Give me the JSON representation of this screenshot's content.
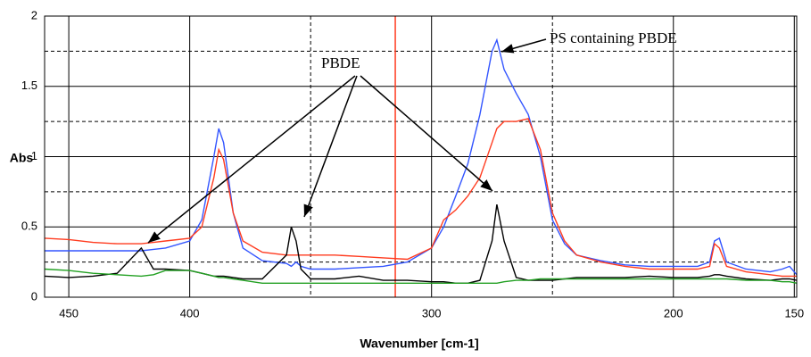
{
  "chart_data": {
    "type": "line",
    "y_label": "Abs",
    "x_label": "Wavenumber [cm-1]",
    "xlim": [
      460,
      149
    ],
    "xticks": [
      450,
      400,
      300,
      200,
      150
    ],
    "x_minor_grid": [
      350,
      250
    ],
    "ylim": [
      0,
      2
    ],
    "yticks": [
      0,
      0.5,
      1,
      1.5,
      2
    ],
    "y_minor_grid": [
      0.25,
      0.75,
      1.25,
      1.75
    ],
    "grid": true,
    "marker_line": 315,
    "marker_color": "#ff3b1f",
    "annotations": [
      "PS containing PBDE",
      "PBDE"
    ],
    "x": [
      460,
      450,
      440,
      430,
      420,
      415,
      410,
      400,
      395,
      390,
      388,
      386,
      382,
      378,
      370,
      360,
      358,
      356,
      354,
      350,
      340,
      330,
      320,
      310,
      300,
      295,
      290,
      285,
      280,
      275,
      273,
      270,
      265,
      260,
      255,
      250,
      245,
      240,
      230,
      220,
      210,
      200,
      190,
      185,
      183,
      181,
      178,
      170,
      160,
      155,
      152,
      149
    ],
    "series": [
      {
        "color": "#3355ff",
        "values": [
          0.33,
          0.33,
          0.33,
          0.33,
          0.33,
          0.34,
          0.35,
          0.4,
          0.55,
          1.0,
          1.2,
          1.1,
          0.6,
          0.35,
          0.26,
          0.24,
          0.22,
          0.25,
          0.22,
          0.2,
          0.2,
          0.21,
          0.22,
          0.25,
          0.35,
          0.5,
          0.72,
          0.95,
          1.3,
          1.75,
          1.83,
          1.62,
          1.45,
          1.3,
          1.0,
          0.55,
          0.38,
          0.3,
          0.26,
          0.23,
          0.22,
          0.22,
          0.22,
          0.25,
          0.4,
          0.42,
          0.25,
          0.2,
          0.18,
          0.2,
          0.22,
          0.16
        ]
      },
      {
        "color": "#ff3b1f",
        "values": [
          0.42,
          0.41,
          0.39,
          0.38,
          0.38,
          0.39,
          0.4,
          0.42,
          0.5,
          0.85,
          1.05,
          0.98,
          0.6,
          0.4,
          0.32,
          0.3,
          0.3,
          0.3,
          0.3,
          0.3,
          0.3,
          0.29,
          0.28,
          0.27,
          0.35,
          0.55,
          0.62,
          0.72,
          0.85,
          1.1,
          1.2,
          1.25,
          1.25,
          1.27,
          1.05,
          0.6,
          0.4,
          0.3,
          0.25,
          0.22,
          0.2,
          0.2,
          0.2,
          0.22,
          0.38,
          0.35,
          0.22,
          0.18,
          0.16,
          0.15,
          0.15,
          0.15
        ]
      },
      {
        "color": "#000000",
        "values": [
          0.15,
          0.14,
          0.15,
          0.17,
          0.35,
          0.2,
          0.2,
          0.19,
          0.17,
          0.15,
          0.15,
          0.15,
          0.14,
          0.13,
          0.13,
          0.3,
          0.5,
          0.4,
          0.2,
          0.13,
          0.13,
          0.15,
          0.12,
          0.12,
          0.11,
          0.11,
          0.1,
          0.1,
          0.12,
          0.4,
          0.66,
          0.4,
          0.14,
          0.12,
          0.12,
          0.12,
          0.13,
          0.14,
          0.14,
          0.14,
          0.15,
          0.14,
          0.14,
          0.15,
          0.16,
          0.16,
          0.15,
          0.13,
          0.12,
          0.13,
          0.13,
          0.12
        ]
      },
      {
        "color": "#22a022",
        "values": [
          0.2,
          0.19,
          0.17,
          0.16,
          0.15,
          0.16,
          0.19,
          0.19,
          0.17,
          0.15,
          0.14,
          0.14,
          0.13,
          0.12,
          0.1,
          0.1,
          0.1,
          0.1,
          0.1,
          0.1,
          0.1,
          0.1,
          0.1,
          0.1,
          0.1,
          0.1,
          0.1,
          0.1,
          0.1,
          0.1,
          0.1,
          0.11,
          0.12,
          0.12,
          0.13,
          0.13,
          0.13,
          0.13,
          0.13,
          0.13,
          0.13,
          0.13,
          0.13,
          0.13,
          0.13,
          0.13,
          0.13,
          0.12,
          0.12,
          0.11,
          0.11,
          0.1
        ]
      }
    ]
  }
}
